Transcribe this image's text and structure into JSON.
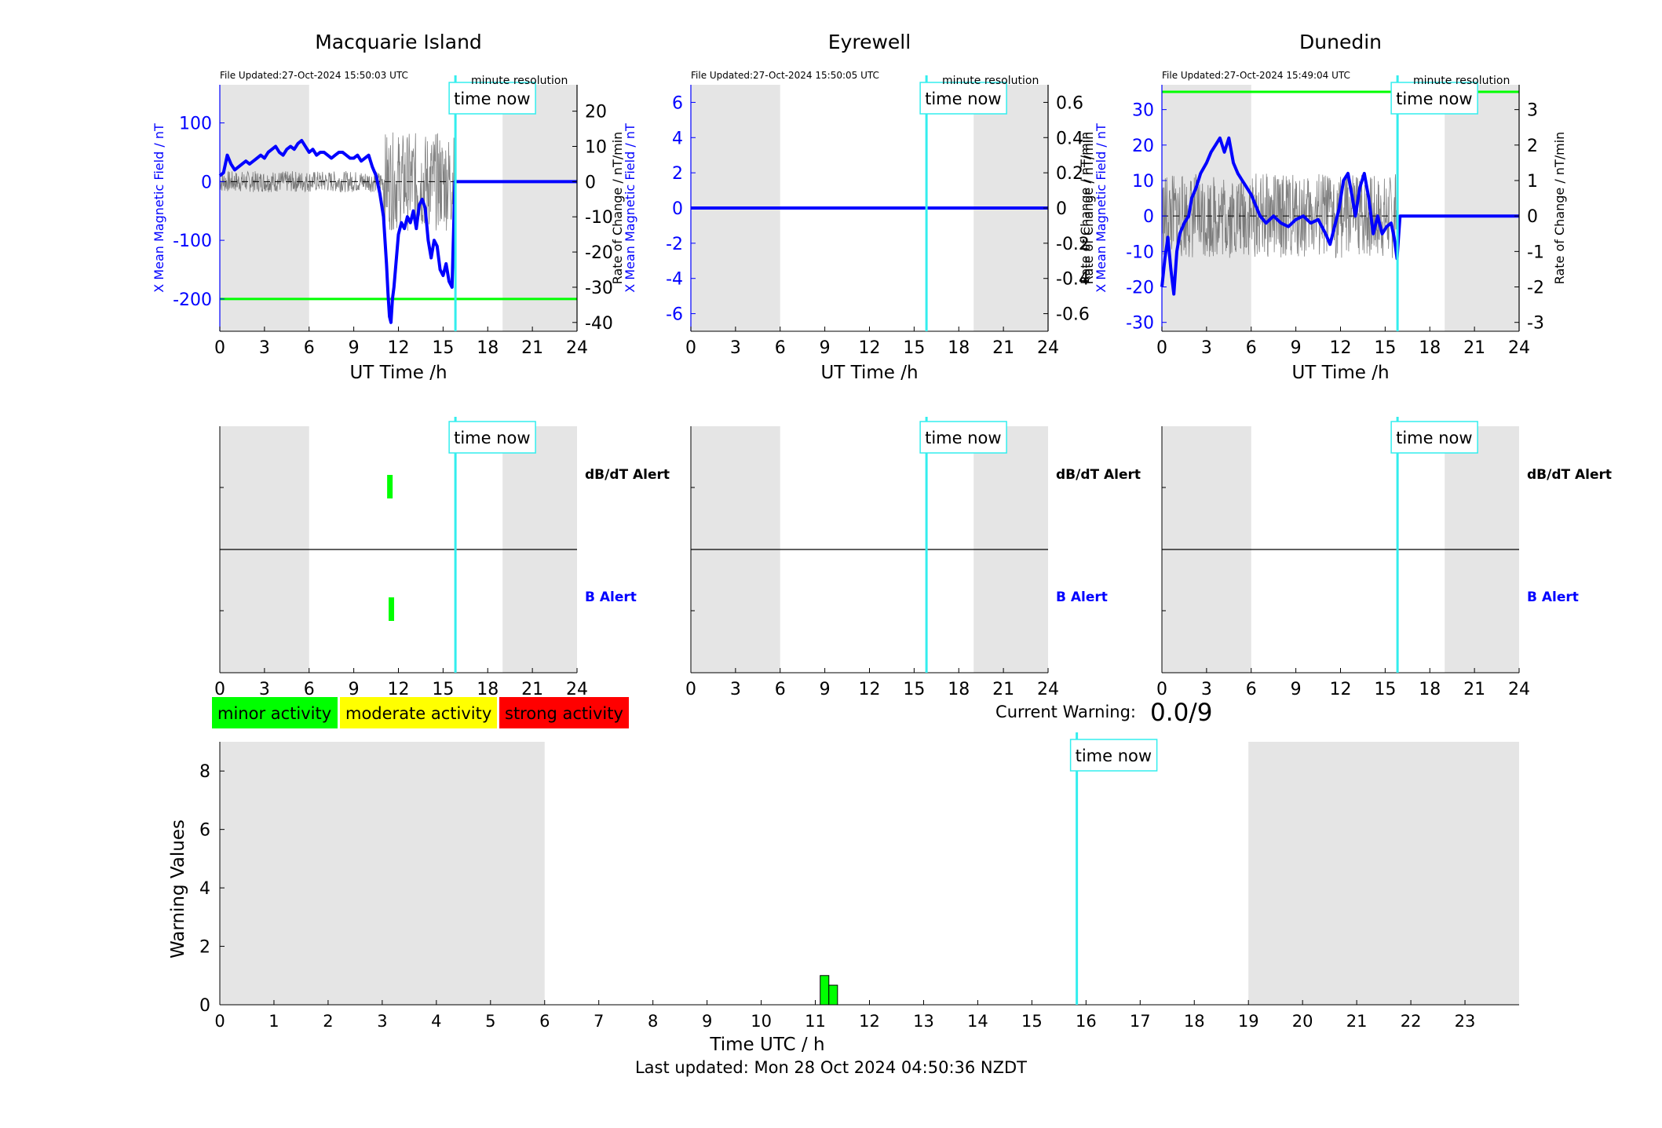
{
  "labels": {
    "time_now": "time now",
    "minute_resolution": "minute resolution",
    "ut_time": "UT Time /h",
    "y_left": "X Mean Magnetic Field / nT",
    "y_right": "Rate of Change / nT/min",
    "y_left_dunedin": "X Mean Magnetic Field / nT",
    "y_right_dunedin_extra": "Rate of Change / nT/min",
    "dbdt_alert": "dB/dT Alert",
    "b_alert": "B Alert",
    "current_warning_label": "Current Warning:",
    "current_warning_value": "0.0/9",
    "warning_values": "Warning Values",
    "time_utc": "Time UTC / h",
    "last_updated": "Last updated: Mon 28 Oct 2024 04:50:36 NZDT"
  },
  "legend": [
    {
      "label": "minor activity",
      "color": "#00ff00"
    },
    {
      "label": "moderate activity",
      "color": "#ffff00"
    },
    {
      "label": "strong activity",
      "color": "#ff0000"
    }
  ],
  "colors": {
    "field": "#0000ff",
    "threshold": "#00ff00",
    "time_now": "#33eeee",
    "shade": "#e5e5e5",
    "rate": "#555555",
    "alert": "#00ff00"
  },
  "chart_data": [
    {
      "type": "line",
      "title": "Macquarie Island",
      "file_updated": "File Updated:27-Oct-2024 15:50:03 UTC",
      "xlabel": "UT Time /h",
      "ylabel": "X Mean Magnetic Field / nT",
      "ylabel_right": "Rate of Change / nT/min",
      "xlim": [
        0,
        24
      ],
      "xticks": [
        0,
        3,
        6,
        9,
        12,
        15,
        18,
        21,
        24
      ],
      "ylim": [
        -255,
        165
      ],
      "yticks": [
        -200,
        -100,
        0,
        100
      ],
      "ylim_right": [
        -42.5,
        27.5
      ],
      "yticks_right": [
        -40,
        -30,
        -20,
        -10,
        0,
        10,
        20
      ],
      "shaded_hours": [
        [
          0,
          6
        ],
        [
          19,
          24
        ]
      ],
      "time_now": 15.83,
      "threshold": -200,
      "series": [
        {
          "x": [
            0,
            0.25,
            0.5,
            0.75,
            1,
            1.25,
            1.5,
            1.75,
            2,
            2.25,
            2.5,
            2.75,
            3,
            3.25,
            3.5,
            3.75,
            4,
            4.25,
            4.5,
            4.75,
            5,
            5.25,
            5.5,
            5.75,
            6,
            6.25,
            6.5,
            6.75,
            7,
            7.25,
            7.5,
            7.75,
            8,
            8.25,
            8.5,
            8.75,
            9,
            9.25,
            9.5,
            9.75,
            10,
            10.25,
            10.5,
            10.75,
            11,
            11.1,
            11.2,
            11.3,
            11.4,
            11.5,
            11.6,
            11.7,
            11.8,
            12,
            12.2,
            12.4,
            12.6,
            12.8,
            13,
            13.2,
            13.4,
            13.6,
            13.8,
            14,
            14.2,
            14.4,
            14.6,
            14.8,
            15,
            15.2,
            15.4,
            15.6,
            15.8,
            16,
            19,
            24
          ],
          "y": [
            10,
            15,
            45,
            30,
            20,
            25,
            30,
            35,
            30,
            35,
            40,
            45,
            40,
            50,
            55,
            60,
            50,
            45,
            55,
            60,
            55,
            65,
            70,
            60,
            50,
            55,
            45,
            50,
            50,
            45,
            40,
            45,
            50,
            50,
            45,
            40,
            40,
            45,
            35,
            40,
            45,
            25,
            10,
            -20,
            -60,
            -100,
            -140,
            -190,
            -230,
            -240,
            -200,
            -180,
            -150,
            -90,
            -70,
            -80,
            -60,
            -70,
            -50,
            -80,
            -40,
            -30,
            -45,
            -100,
            -130,
            -100,
            -110,
            -150,
            -160,
            -140,
            -170,
            -180,
            0,
            0,
            0,
            0
          ]
        }
      ],
      "rate_dense": [
        {
          "x": [
            0,
            11
          ],
          "amp": 3
        },
        {
          "x": [
            11,
            15.8
          ],
          "amp": 14
        }
      ]
    },
    {
      "type": "line",
      "title": "Eyrewell",
      "file_updated": "File Updated:27-Oct-2024 15:50:05 UTC",
      "xlabel": "UT Time /h",
      "ylabel": "X Mean Magnetic Field / nT",
      "ylabel_right": "Rate of Change / nT/min",
      "xlim": [
        0,
        24
      ],
      "xticks": [
        0,
        3,
        6,
        9,
        12,
        15,
        18,
        21,
        24
      ],
      "ylim": [
        -7,
        7
      ],
      "yticks": [
        -6,
        -4,
        -2,
        0,
        2,
        4,
        6
      ],
      "ylim_right": [
        -0.7,
        0.7
      ],
      "yticks_right": [
        -0.6,
        -0.4,
        -0.2,
        0,
        0.2,
        0.4,
        0.6
      ],
      "shaded_hours": [
        [
          0,
          6
        ],
        [
          19,
          24
        ]
      ],
      "time_now": 15.83,
      "series": [
        {
          "x": [
            0,
            24
          ],
          "y": [
            0,
            0
          ]
        }
      ]
    },
    {
      "type": "line",
      "title": "Dunedin",
      "file_updated": "File Updated:27-Oct-2024 15:49:04 UTC",
      "xlabel": "UT Time /h",
      "ylabel": "X Mean Magnetic Field / nT",
      "ylabel_right": "Rate of Change / nT/min",
      "xlim": [
        0,
        24
      ],
      "xticks": [
        0,
        3,
        6,
        9,
        12,
        15,
        18,
        21,
        24
      ],
      "ylim": [
        -32.5,
        37
      ],
      "yticks": [
        -30,
        -20,
        -10,
        0,
        10,
        20,
        30
      ],
      "ylim_right": [
        -3.25,
        3.7
      ],
      "yticks_right": [
        -3,
        -2,
        -1,
        0,
        1,
        2,
        3
      ],
      "shaded_hours": [
        [
          0,
          6
        ],
        [
          19,
          24
        ]
      ],
      "time_now": 15.83,
      "threshold": 35,
      "series": [
        {
          "x": [
            0,
            0.2,
            0.4,
            0.6,
            0.8,
            1,
            1.2,
            1.5,
            1.8,
            2,
            2.3,
            2.6,
            3,
            3.3,
            3.6,
            3.9,
            4.2,
            4.5,
            4.8,
            5.1,
            5.4,
            5.7,
            6,
            6.3,
            6.6,
            7,
            7.5,
            8,
            8.5,
            9,
            9.5,
            10,
            10.5,
            11,
            11.3,
            11.6,
            11.9,
            12.2,
            12.5,
            12.8,
            13,
            13.3,
            13.6,
            13.9,
            14.2,
            14.5,
            14.8,
            15.1,
            15.4,
            15.6,
            15.8,
            16,
            19,
            24
          ],
          "y": [
            -20,
            -12,
            -6,
            -15,
            -22,
            -10,
            -5,
            -2,
            0,
            5,
            8,
            12,
            15,
            18,
            20,
            22,
            18,
            22,
            15,
            12,
            10,
            8,
            6,
            3,
            0,
            -2,
            0,
            -2,
            -3,
            -1,
            0,
            -2,
            -1,
            -5,
            -8,
            -3,
            2,
            10,
            12,
            5,
            0,
            8,
            12,
            5,
            -5,
            0,
            -5,
            -3,
            -2,
            -6,
            -12,
            0,
            0,
            0
          ]
        }
      ],
      "rate_dense": [
        {
          "x": [
            0,
            15.8
          ],
          "amp": 1.2
        }
      ]
    },
    {
      "type": "bar",
      "title": "",
      "xlabel": "Time UTC / h",
      "ylabel": "Warning Values",
      "xlim": [
        0,
        24
      ],
      "xticks": [
        0,
        1,
        2,
        3,
        4,
        5,
        6,
        7,
        8,
        9,
        10,
        11,
        12,
        13,
        14,
        15,
        16,
        17,
        18,
        19,
        20,
        21,
        22,
        23
      ],
      "ylim": [
        0,
        9
      ],
      "yticks": [
        0,
        2,
        4,
        6,
        8
      ],
      "shaded_hours": [
        [
          0,
          6
        ],
        [
          19,
          24
        ]
      ],
      "time_now": 15.83,
      "bars": [
        {
          "x": 11.17,
          "value": 1.0
        },
        {
          "x": 11.33,
          "value": 0.67
        }
      ]
    }
  ],
  "alert_panels": [
    {
      "station": "Macquarie Island",
      "xticks": [
        0,
        3,
        6,
        9,
        12,
        15,
        18,
        21,
        24
      ],
      "dbdt_alerts": [
        11.4
      ],
      "b_alerts": [
        11.5
      ],
      "time_now": 15.83
    },
    {
      "station": "Eyrewell",
      "xticks": [
        0,
        3,
        6,
        9,
        12,
        15,
        18,
        21,
        24
      ],
      "dbdt_alerts": [],
      "b_alerts": [],
      "time_now": 15.83
    },
    {
      "station": "Dunedin",
      "xticks": [
        0,
        3,
        6,
        9,
        12,
        15,
        18,
        21,
        24
      ],
      "dbdt_alerts": [],
      "b_alerts": [],
      "time_now": 15.83
    }
  ]
}
